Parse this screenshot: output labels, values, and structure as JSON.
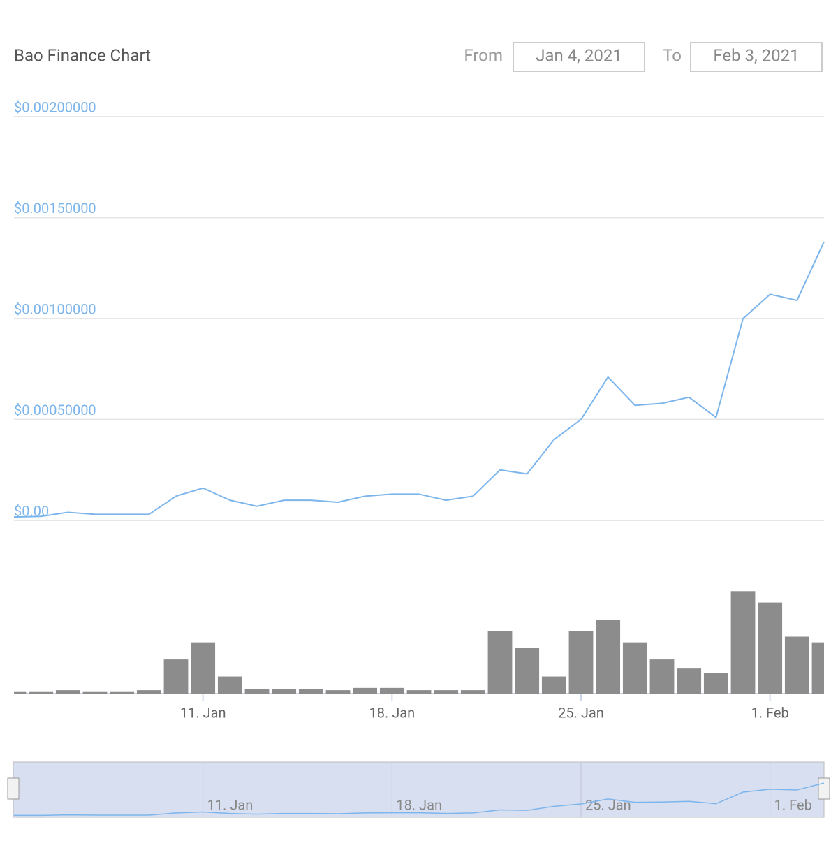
{
  "header": {
    "title": "Bao Finance Chart",
    "from_label": "From",
    "from_date": "Jan 4, 2021",
    "to_label": "To",
    "to_date": "Feb 3, 2021"
  },
  "chart_data": {
    "type": "line",
    "color": "#7cb5ec",
    "volume_color": "#8c8c8c",
    "x": [
      "2021-01-04",
      "2021-01-05",
      "2021-01-06",
      "2021-01-07",
      "2021-01-08",
      "2021-01-09",
      "2021-01-10",
      "2021-01-11",
      "2021-01-12",
      "2021-01-13",
      "2021-01-14",
      "2021-01-15",
      "2021-01-16",
      "2021-01-17",
      "2021-01-18",
      "2021-01-19",
      "2021-01-20",
      "2021-01-21",
      "2021-01-22",
      "2021-01-23",
      "2021-01-24",
      "2021-01-25",
      "2021-01-26",
      "2021-01-27",
      "2021-01-28",
      "2021-01-29",
      "2021-01-30",
      "2021-01-31",
      "2021-02-01",
      "2021-02-02",
      "2021-02-03"
    ],
    "values": [
      1.7e-05,
      2e-05,
      4e-05,
      3e-05,
      3e-05,
      3e-05,
      0.00012,
      0.00016,
      0.0001,
      7e-05,
      0.0001,
      0.0001,
      9e-05,
      0.00012,
      0.00013,
      0.00013,
      0.0001,
      0.00012,
      0.00025,
      0.00023,
      0.0004,
      0.0005,
      0.00071,
      0.00057,
      0.00058,
      0.00061,
      0.00051,
      0.001,
      0.00112,
      0.00109,
      0.00138
    ],
    "volume": [
      2,
      2,
      3,
      2,
      2,
      3,
      30,
      45,
      15,
      4,
      4,
      4,
      3,
      5,
      5,
      3,
      3,
      3,
      55,
      40,
      15,
      55,
      65,
      45,
      30,
      22,
      18,
      90,
      80,
      50,
      45
    ],
    "volume_ylim": [
      0,
      100
    ],
    "xlim": [
      "2021-01-04",
      "2021-02-03"
    ],
    "xticks": [
      {
        "value": "2021-01-11",
        "label": "11. Jan"
      },
      {
        "value": "2021-01-18",
        "label": "18. Jan"
      },
      {
        "value": "2021-01-25",
        "label": "25. Jan"
      },
      {
        "value": "2021-02-01",
        "label": "1. Feb"
      }
    ],
    "ylim": [
      0,
      0.002
    ],
    "yticks": [
      {
        "value": 0,
        "label": "$0.00"
      },
      {
        "value": 0.0005,
        "label": "$0.00050000"
      },
      {
        "value": 0.001,
        "label": "$0.00100000"
      },
      {
        "value": 0.0015,
        "label": "$0.00150000"
      },
      {
        "value": 0.002,
        "label": "$0.00200000"
      }
    ],
    "grid": true
  }
}
